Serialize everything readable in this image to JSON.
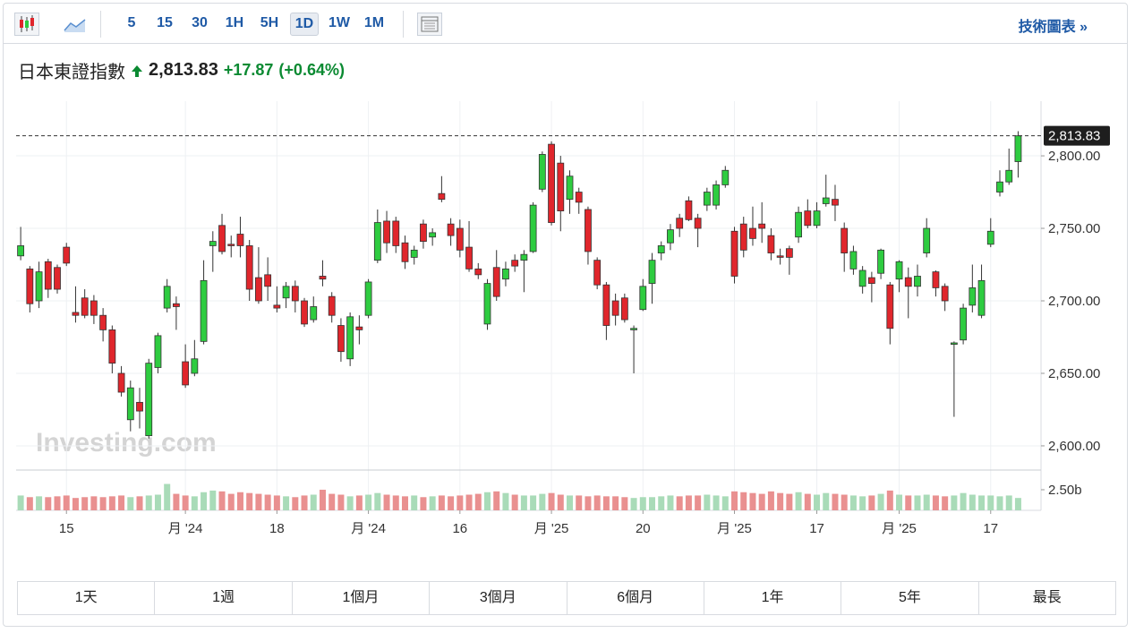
{
  "toolbar": {
    "intervals": [
      "5",
      "15",
      "30",
      "1H",
      "5H",
      "1D",
      "1W",
      "1M"
    ],
    "active": "1D",
    "link": "技術圖表 »"
  },
  "header": {
    "name": "日本東證指數",
    "price": "2,813.83",
    "change": "+17.87",
    "change_pct": "(+0.64%)"
  },
  "ranges": [
    "1天",
    "1週",
    "1個月",
    "3個月",
    "6個月",
    "1年",
    "5年",
    "最長"
  ],
  "chart_data": {
    "type": "candlestick",
    "watermark": "Investing.com",
    "up_color": "#2ecc40",
    "down_color": "#e0262c",
    "up_volume_color": "#a9dbb8",
    "down_volume_color": "#e99090",
    "ylim": [
      2583.3,
      2837.7
    ],
    "yticks": [
      {
        "value": 2600,
        "label": "2,600.00"
      },
      {
        "value": 2650,
        "label": "2,650.00"
      },
      {
        "value": 2700,
        "label": "2,700.00"
      },
      {
        "value": 2750,
        "label": "2,750.00"
      },
      {
        "value": 2800,
        "label": "2,800.00"
      }
    ],
    "last_price": {
      "value": 2813.83,
      "label": "2,813.83"
    },
    "volume_ylim": [
      0,
      4.67
    ],
    "volume_yticks": [
      {
        "value": 2.5,
        "label": "2.50b"
      }
    ],
    "xlim": [
      -0.5,
      111.5
    ],
    "xticks": [
      {
        "value": 5,
        "label": "15"
      },
      {
        "value": 18,
        "label": "月 '24"
      },
      {
        "value": 28,
        "label": "18"
      },
      {
        "value": 38,
        "label": "月 '24"
      },
      {
        "value": 48,
        "label": "16"
      },
      {
        "value": 58,
        "label": "月 '25"
      },
      {
        "value": 68,
        "label": "20"
      },
      {
        "value": 78,
        "label": "月 '25"
      },
      {
        "value": 87,
        "label": "17"
      },
      {
        "value": 96,
        "label": "月 '25"
      },
      {
        "value": 106,
        "label": "17"
      }
    ],
    "grid": true,
    "open": [
      2731,
      2722,
      2700,
      2727,
      2723,
      2737,
      2692,
      2702,
      2700,
      2690,
      2680,
      2650,
      2618,
      2630,
      2607,
      2654,
      2695,
      2698,
      2658,
      2650,
      2672,
      2738,
      2752,
      2739,
      2746,
      2738,
      2716,
      2718,
      2697,
      2702,
      2710,
      2700,
      2687,
      2717,
      2703,
      2683,
      2660,
      2682,
      2690,
      2728,
      2755,
      2755,
      2740,
      2730,
      2753,
      2744,
      2774,
      2753,
      2750,
      2737,
      2722,
      2684,
      2723,
      2715,
      2728,
      2728,
      2734,
      2777,
      2808,
      2795,
      2770,
      2775,
      2763,
      2728,
      2711,
      2700,
      2702,
      2680,
      2694,
      2712,
      2733,
      2740,
      2757,
      2769,
      2757,
      2766,
      2766,
      2780,
      2748,
      2753,
      2750,
      2753,
      2745,
      2731,
      2736,
      2744,
      2762,
      2752,
      2767,
      2770,
      2750,
      2722,
      2710,
      2716,
      2719,
      2711,
      2715,
      2716,
      2710,
      2733,
      2720,
      2710,
      2670,
      2673,
      2697,
      2690,
      2739,
      2775,
      2782,
      2796
    ],
    "high": [
      2751,
      2724,
      2727,
      2729,
      2725,
      2740,
      2710,
      2708,
      2704,
      2695,
      2683,
      2655,
      2645,
      2640,
      2660,
      2678,
      2715,
      2703,
      2670,
      2673,
      2728,
      2748,
      2760,
      2745,
      2758,
      2742,
      2737,
      2730,
      2710,
      2713,
      2714,
      2702,
      2703,
      2728,
      2706,
      2688,
      2692,
      2690,
      2715,
      2763,
      2762,
      2758,
      2745,
      2738,
      2756,
      2750,
      2786,
      2757,
      2756,
      2755,
      2726,
      2715,
      2735,
      2727,
      2732,
      2735,
      2768,
      2803,
      2810,
      2800,
      2790,
      2778,
      2765,
      2730,
      2713,
      2705,
      2705,
      2683,
      2715,
      2733,
      2741,
      2753,
      2760,
      2772,
      2760,
      2778,
      2783,
      2793,
      2751,
      2758,
      2765,
      2768,
      2750,
      2736,
      2738,
      2765,
      2770,
      2768,
      2787,
      2780,
      2754,
      2738,
      2724,
      2720,
      2736,
      2713,
      2728,
      2723,
      2725,
      2757,
      2721,
      2712,
      2672,
      2698,
      2725,
      2725,
      2757,
      2790,
      2805,
      2817
    ],
    "low": [
      2728,
      2692,
      2695,
      2702,
      2705,
      2724,
      2685,
      2688,
      2684,
      2672,
      2650,
      2634,
      2610,
      2612,
      2605,
      2650,
      2692,
      2680,
      2640,
      2648,
      2670,
      2720,
      2732,
      2730,
      2730,
      2700,
      2698,
      2700,
      2692,
      2695,
      2692,
      2682,
      2685,
      2710,
      2685,
      2658,
      2655,
      2670,
      2688,
      2726,
      2733,
      2733,
      2722,
      2725,
      2736,
      2738,
      2768,
      2738,
      2730,
      2720,
      2715,
      2680,
      2700,
      2710,
      2720,
      2706,
      2733,
      2775,
      2752,
      2748,
      2760,
      2760,
      2725,
      2708,
      2673,
      2683,
      2685,
      2650,
      2693,
      2698,
      2728,
      2735,
      2744,
      2755,
      2737,
      2762,
      2763,
      2778,
      2712,
      2730,
      2738,
      2740,
      2728,
      2725,
      2718,
      2740,
      2750,
      2750,
      2765,
      2755,
      2720,
      2718,
      2705,
      2699,
      2715,
      2670,
      2706,
      2688,
      2703,
      2730,
      2703,
      2693,
      2620,
      2670,
      2692,
      2688,
      2737,
      2772,
      2780,
      2785
    ],
    "close": [
      2738,
      2698,
      2720,
      2708,
      2708,
      2726,
      2690,
      2690,
      2690,
      2680,
      2657,
      2637,
      2640,
      2624,
      2657,
      2676,
      2710,
      2696,
      2642,
      2660,
      2714,
      2741,
      2734,
      2738,
      2738,
      2708,
      2700,
      2710,
      2695,
      2710,
      2700,
      2684,
      2696,
      2715,
      2690,
      2665,
      2689,
      2680,
      2713,
      2754,
      2740,
      2738,
      2727,
      2735,
      2741,
      2747,
      2770,
      2745,
      2735,
      2722,
      2718,
      2712,
      2703,
      2722,
      2724,
      2732,
      2766,
      2801,
      2754,
      2762,
      2786,
      2768,
      2734,
      2711,
      2683,
      2690,
      2687,
      2681,
      2710,
      2728,
      2738,
      2749,
      2750,
      2756,
      2750,
      2775,
      2780,
      2790,
      2717,
      2735,
      2743,
      2750,
      2733,
      2730,
      2730,
      2761,
      2752,
      2762,
      2771,
      2766,
      2733,
      2734,
      2721,
      2712,
      2735,
      2681,
      2727,
      2710,
      2717,
      2750,
      2709,
      2700,
      2671,
      2695,
      2709,
      2714,
      2748,
      2782,
      2790,
      2813.83
    ],
    "volume": [
      1.8,
      1.6,
      1.7,
      1.6,
      1.7,
      1.8,
      1.5,
      1.6,
      1.7,
      1.6,
      1.7,
      1.8,
      1.6,
      1.7,
      1.8,
      1.9,
      3.2,
      2.0,
      1.8,
      1.7,
      2.2,
      2.4,
      2.3,
      2.0,
      2.2,
      2.1,
      2.0,
      1.9,
      1.8,
      1.7,
      1.6,
      1.8,
      1.9,
      2.5,
      2.0,
      1.9,
      1.7,
      1.8,
      1.9,
      2.1,
      1.9,
      1.8,
      1.7,
      1.8,
      1.6,
      1.7,
      1.8,
      1.7,
      1.8,
      1.9,
      2.0,
      2.2,
      2.3,
      2.1,
      1.9,
      1.8,
      1.8,
      2.0,
      2.1,
      1.9,
      1.8,
      1.8,
      1.7,
      1.8,
      1.7,
      1.7,
      1.6,
      1.5,
      1.6,
      1.6,
      1.7,
      1.8,
      1.7,
      1.8,
      1.8,
      1.9,
      1.8,
      1.7,
      2.3,
      2.2,
      2.1,
      2.0,
      2.3,
      2.1,
      2.0,
      2.2,
      2.0,
      1.9,
      2.1,
      2.0,
      1.9,
      1.8,
      1.7,
      1.8,
      2.0,
      2.4,
      1.9,
      1.8,
      1.8,
      1.9,
      1.8,
      1.7,
      1.8,
      2.1,
      1.9,
      1.8,
      1.8,
      1.7,
      1.8,
      1.5
    ]
  }
}
